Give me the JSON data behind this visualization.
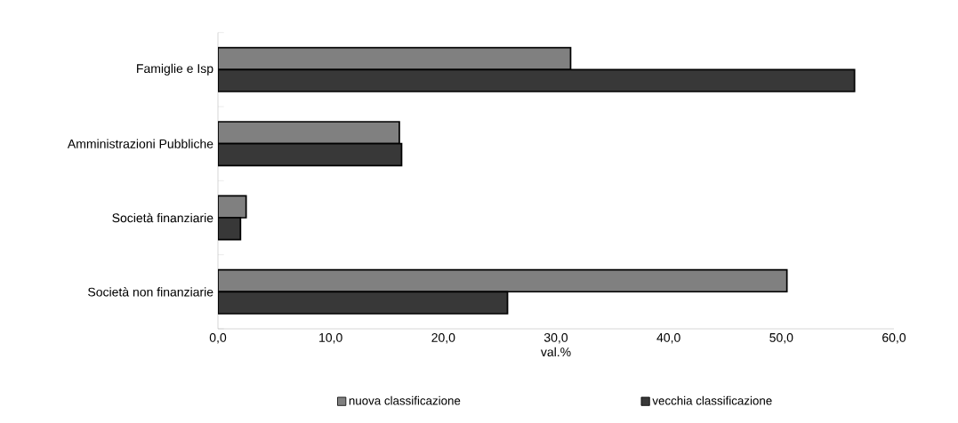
{
  "chart_data": {
    "type": "bar",
    "orientation": "horizontal",
    "xlabel": "val.%",
    "categories": [
      "Famiglie e Isp",
      "Amministrazioni Pubbliche",
      "Società finanziarie",
      "Società non finanziarie"
    ],
    "series": [
      {
        "name": "nuova classificazione",
        "color": "#808080",
        "values": [
          31.3,
          16.1,
          2.5,
          50.5
        ]
      },
      {
        "name": "vecchia classificazione",
        "color": "#383838",
        "values": [
          56.5,
          16.3,
          2.0,
          25.7
        ]
      }
    ],
    "xlim": [
      0,
      60
    ],
    "xticks": [
      {
        "value": 0,
        "label": "0,0"
      },
      {
        "value": 10,
        "label": "10,0"
      },
      {
        "value": 20,
        "label": "20,0"
      },
      {
        "value": 30,
        "label": "30,0"
      },
      {
        "value": 40,
        "label": "40,0"
      },
      {
        "value": 50,
        "label": "50,0"
      },
      {
        "value": 60,
        "label": "60,0"
      }
    ],
    "grid": false,
    "legend": "bottom"
  }
}
